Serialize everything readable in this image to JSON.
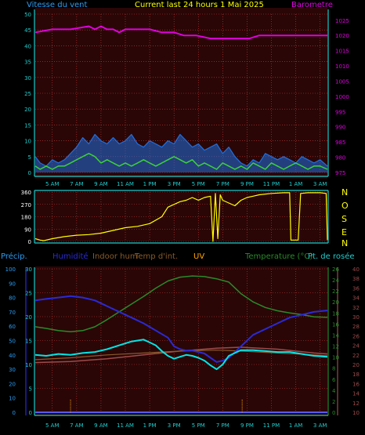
{
  "header": {
    "wind_title": "Vitesse du vent",
    "center_title": "Current last 24 hours 1 Mai 2025",
    "baro_title": "Barometre"
  },
  "legend": {
    "precip": "Précip.",
    "humidity": "Humidité",
    "indoor_hum": "Indoor hum",
    "indoor_temp": "Temp d'int.",
    "uv": "UV",
    "temperature": "Temperature (°C)",
    "dewpoint": "Pt. de rosée"
  },
  "compass": [
    "N",
    "O",
    "S",
    "E",
    "N"
  ],
  "colors": {
    "wind_line": "#1f6fe0",
    "gust_line": "#39d239",
    "wind_fill": "#1f6fe0",
    "baro": "#e000e0",
    "direction": "#ffff00",
    "temperature": "#2a8a2a",
    "dewpoint": "#9e4a4a",
    "humidity": "#2a2ad8",
    "indoor_temp": "#8a5a2a",
    "indoor_hum": "#00e6e6",
    "uv": "#ffa500",
    "precip": "#2a2ad8",
    "grid": "#c83c3c",
    "axis": "#22cccc"
  },
  "chart_data": [
    {
      "type": "line",
      "panel": "wind_barometer",
      "xlabel": "",
      "x_tick_labels": [
        "5 AM",
        "7 AM",
        "9 AM",
        "11 AM",
        "1 PM",
        "3 PM",
        "5 PM",
        "7 PM",
        "9 PM",
        "11 PM",
        "1 AM",
        "3 AM"
      ],
      "x_hours": [
        5,
        7,
        9,
        11,
        13,
        15,
        17,
        19,
        21,
        23,
        25,
        27
      ],
      "x_range_hours": [
        3.6,
        27.6
      ],
      "y_left": {
        "range": [
          0,
          50
        ],
        "ticks": [
          0,
          5,
          10,
          15,
          20,
          25,
          30,
          35,
          40,
          45,
          50
        ]
      },
      "y_right": {
        "range": [
          975,
          1027
        ],
        "ticks": [
          975,
          980,
          985,
          990,
          995,
          1000,
          1005,
          1010,
          1015,
          1020,
          1025
        ]
      },
      "series": [
        {
          "name": "Barometre",
          "axis": "right",
          "x": [
            3.6,
            5.0,
            6.5,
            8.0,
            8.5,
            9.0,
            9.5,
            10.0,
            10.5,
            11.0,
            12.0,
            13.0,
            14.0,
            15.0,
            15.8,
            16.8,
            18.0,
            19.5,
            20.5,
            21.2,
            22.0,
            22.5,
            23.0,
            25.0,
            27.6
          ],
          "values": [
            1021,
            1022,
            1022,
            1023,
            1022,
            1023,
            1022,
            1022,
            1021,
            1022,
            1022,
            1022,
            1021,
            1021,
            1020,
            1020,
            1019,
            1019,
            1019,
            1019,
            1020,
            1020,
            1020,
            1020,
            1020
          ]
        },
        {
          "name": "Vitesse du vent",
          "axis": "left",
          "x": [
            3.6,
            4.0,
            4.5,
            5.0,
            5.5,
            6.0,
            6.5,
            7.0,
            7.5,
            8.0,
            8.5,
            9.0,
            9.5,
            10.0,
            10.5,
            11.0,
            11.5,
            12.0,
            12.5,
            13.0,
            13.5,
            14.0,
            14.5,
            15.0,
            15.5,
            16.0,
            16.5,
            17.0,
            17.5,
            18.0,
            18.5,
            19.0,
            19.5,
            20.0,
            20.5,
            21.0,
            21.5,
            22.0,
            22.5,
            23.0,
            23.5,
            24.0,
            24.5,
            25.0,
            25.5,
            26.0,
            26.5,
            27.0,
            27.6
          ],
          "values": [
            5,
            3,
            2,
            4,
            3,
            4,
            6,
            8,
            11,
            9,
            12,
            10,
            9,
            11,
            9,
            10,
            12,
            9,
            8,
            10,
            9,
            8,
            10,
            9,
            12,
            10,
            8,
            9,
            7,
            8,
            9,
            6,
            8,
            5,
            3,
            2,
            4,
            3,
            6,
            5,
            4,
            5,
            4,
            3,
            5,
            4,
            3,
            4,
            2
          ]
        },
        {
          "name": "Rafales",
          "axis": "left",
          "x": [
            3.6,
            4.0,
            4.5,
            5.0,
            5.5,
            6.0,
            6.5,
            7.0,
            7.5,
            8.0,
            8.5,
            9.0,
            9.5,
            10.0,
            10.5,
            11.0,
            11.5,
            12.0,
            12.5,
            13.0,
            13.5,
            14.0,
            14.5,
            15.0,
            15.5,
            16.0,
            16.5,
            17.0,
            17.5,
            18.0,
            18.5,
            19.0,
            19.5,
            20.0,
            20.5,
            21.0,
            21.5,
            22.0,
            22.5,
            23.0,
            23.5,
            24.0,
            24.5,
            25.0,
            25.5,
            26.0,
            26.5,
            27.0,
            27.6
          ],
          "values": [
            2,
            1,
            2,
            1,
            2,
            2,
            3,
            4,
            5,
            6,
            5,
            3,
            4,
            3,
            2,
            3,
            2,
            3,
            4,
            3,
            2,
            3,
            4,
            5,
            4,
            3,
            4,
            2,
            3,
            2,
            1,
            3,
            2,
            1,
            2,
            1,
            3,
            2,
            1,
            3,
            2,
            1,
            2,
            3,
            2,
            1,
            2,
            2,
            1
          ]
        }
      ]
    },
    {
      "type": "scatter",
      "panel": "wind_direction",
      "y_range": [
        0,
        360
      ],
      "y_ticks": [
        0,
        90,
        180,
        270,
        360
      ],
      "series": [
        {
          "name": "Direction",
          "x": [
            3.6,
            4.0,
            4.3,
            5.0,
            6.0,
            7.0,
            8.0,
            9.0,
            10.0,
            11.0,
            12.0,
            13.0,
            14.0,
            14.5,
            15.0,
            15.5,
            16.0,
            16.5,
            17.0,
            17.5,
            18.0,
            18.2,
            18.4,
            18.6,
            18.8,
            19.0,
            19.5,
            20.0,
            20.5,
            21.0,
            21.5,
            22.0,
            23.0,
            24.0,
            24.5,
            24.6,
            25.2,
            25.4,
            26.0,
            27.0,
            27.5,
            27.6
          ],
          "values": [
            20,
            10,
            5,
            20,
            35,
            45,
            50,
            60,
            80,
            100,
            110,
            130,
            180,
            250,
            270,
            290,
            300,
            320,
            300,
            320,
            330,
            0,
            350,
            20,
            340,
            300,
            280,
            260,
            300,
            320,
            330,
            340,
            350,
            355,
            355,
            10,
            10,
            350,
            355,
            355,
            350,
            10
          ]
        }
      ]
    },
    {
      "type": "line",
      "panel": "temperature_humidity",
      "y_left_outer": {
        "name": "Précip.",
        "range": [
          0,
          100
        ],
        "ticks": [
          0,
          10,
          20,
          30,
          40,
          50,
          60,
          70,
          80,
          90,
          100
        ]
      },
      "y_left_inner": {
        "name": "Humidité",
        "range": [
          0,
          30
        ],
        "ticks": [
          0,
          5,
          10,
          15,
          20,
          25,
          30
        ]
      },
      "y_right_inner": {
        "name": "Temperature (°C)",
        "range": [
          0,
          26
        ],
        "ticks": [
          0,
          2,
          4,
          6,
          8,
          10,
          12,
          14,
          16,
          18,
          20,
          22,
          24,
          26
        ]
      },
      "y_right_outer": {
        "name": "Pt. de rosée",
        "range": [
          10,
          40
        ],
        "ticks": [
          10,
          12,
          14,
          16,
          18,
          20,
          22,
          24,
          26,
          28,
          30,
          32,
          34,
          36,
          38,
          40
        ]
      },
      "series": [
        {
          "name": "Temperature (°C)",
          "axis": "right_inner",
          "x": [
            3.6,
            4.5,
            5.5,
            6.5,
            7.5,
            8.5,
            9.5,
            10.5,
            11.5,
            12.5,
            13.5,
            14.5,
            15.5,
            16.5,
            17.5,
            18.5,
            19.5,
            20.5,
            21.5,
            22.5,
            23.5,
            24.5,
            25.5,
            26.5,
            27.6
          ],
          "values": [
            15.5,
            15.2,
            14.8,
            14.6,
            14.8,
            15.5,
            16.8,
            18.2,
            19.6,
            21.0,
            22.5,
            23.8,
            24.5,
            24.7,
            24.6,
            24.2,
            23.6,
            21.5,
            20.0,
            19.0,
            18.4,
            18.0,
            17.7,
            17.3,
            17.2
          ]
        },
        {
          "name": "Humidité",
          "axis": "left_outer",
          "x": [
            3.6,
            4.5,
            5.5,
            6.5,
            7.5,
            8.5,
            9.5,
            10.5,
            11.5,
            12.5,
            13.5,
            14.5,
            15.0,
            15.5,
            16.0,
            16.5,
            17.0,
            17.5,
            18.0,
            18.5,
            19.0,
            19.5,
            20.5,
            21.5,
            22.5,
            23.5,
            24.5,
            25.5,
            26.5,
            27.6
          ],
          "values": [
            78,
            79,
            80,
            81,
            80,
            78,
            74,
            70,
            66,
            62,
            57,
            52,
            46,
            44,
            43,
            43,
            42,
            41,
            38,
            35,
            36,
            38,
            46,
            54,
            58,
            62,
            66,
            68,
            70,
            71
          ]
        },
        {
          "name": "Pt. de rosée",
          "axis": "right_outer",
          "x": [
            3.6,
            6.5,
            9.5,
            12.5,
            15.5,
            18.5,
            20.5,
            23.5,
            26.5,
            27.6
          ],
          "values": [
            20.4,
            20.6,
            21.2,
            22.0,
            22.8,
            23.4,
            23.6,
            23.2,
            22.4,
            22.2
          ]
        },
        {
          "name": "Temp d'int.",
          "axis": "right_outer",
          "x": [
            3.6,
            6.5,
            9.5,
            12.5,
            15.5,
            18.5,
            20.5,
            23.5,
            26.5,
            27.6
          ],
          "values": [
            21.0,
            21.4,
            22.0,
            22.4,
            22.8,
            23.0,
            22.8,
            22.4,
            22.0,
            21.8
          ]
        },
        {
          "name": "Indoor hum",
          "axis": "left_inner",
          "x": [
            3.6,
            4.5,
            5.5,
            6.5,
            7.5,
            8.5,
            9.5,
            10.5,
            11.5,
            12.5,
            13.0,
            13.5,
            14.0,
            14.5,
            15.0,
            15.5,
            16.0,
            16.5,
            17.0,
            17.5,
            18.0,
            18.5,
            19.0,
            19.5,
            20.5,
            21.5,
            22.5,
            23.5,
            24.5,
            25.5,
            26.5,
            27.6
          ],
          "values": [
            12.0,
            11.8,
            12.2,
            12.0,
            12.4,
            12.6,
            13.2,
            14.0,
            14.8,
            15.2,
            14.6,
            14.0,
            12.8,
            11.8,
            11.2,
            11.6,
            12.0,
            11.8,
            11.4,
            10.8,
            9.8,
            9.0,
            10.0,
            11.8,
            13.0,
            13.0,
            12.8,
            12.6,
            12.6,
            12.2,
            11.8,
            11.6
          ]
        },
        {
          "name": "UV",
          "axis": "left_inner",
          "x": [
            6.5,
            6.6,
            20.6,
            20.7
          ],
          "values": [
            0,
            1,
            1,
            0
          ]
        },
        {
          "name": "Précip.",
          "axis": "left_outer",
          "x": [
            3.6,
            27.6
          ],
          "values": [
            0,
            0
          ]
        }
      ]
    }
  ]
}
